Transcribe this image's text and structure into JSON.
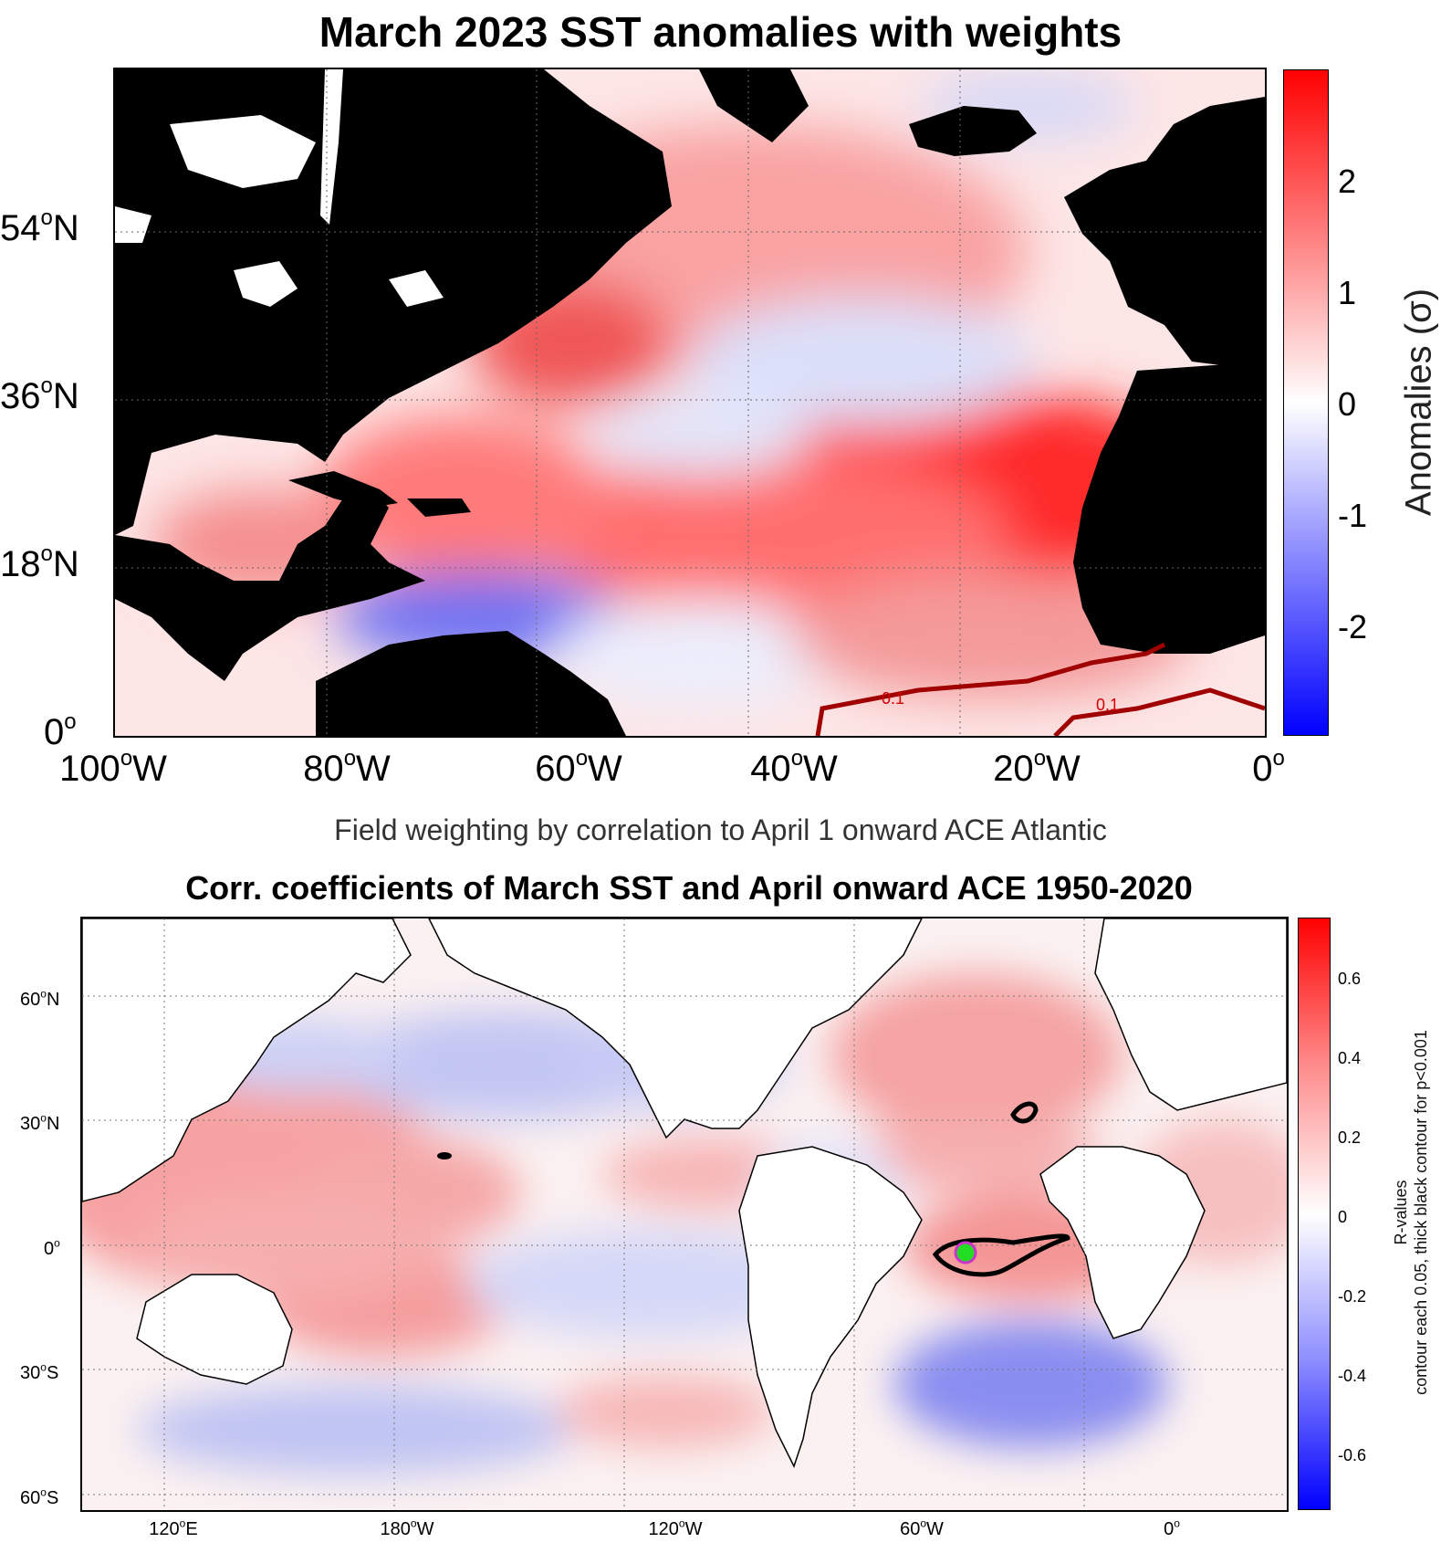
{
  "panel1": {
    "title": "March 2023 SST anomalies with weights",
    "lat_labels": [
      {
        "deg": "54",
        "hemi": "N"
      },
      {
        "deg": "36",
        "hemi": "N"
      },
      {
        "deg": "18",
        "hemi": "N"
      },
      {
        "deg": "0",
        "hemi": ""
      }
    ],
    "lon_labels": [
      {
        "deg": "100",
        "hemi": "W"
      },
      {
        "deg": "80",
        "hemi": "W"
      },
      {
        "deg": "60",
        "hemi": "W"
      },
      {
        "deg": "40",
        "hemi": "W"
      },
      {
        "deg": "20",
        "hemi": "W"
      },
      {
        "deg": "0",
        "hemi": ""
      }
    ],
    "colorbar": {
      "label": "Anomalies (σ)",
      "ticks": [
        "2",
        "1",
        "0",
        "-1",
        "-2"
      ]
    },
    "contour_labels": [
      "0.1",
      "0.1"
    ],
    "subtitle": "Field weighting by correlation to April 1 onward ACE Atlantic"
  },
  "panel2": {
    "title": "Corr. coefficients of March SST and April onward ACE 1950-2020",
    "lat_labels": [
      {
        "deg": "60",
        "hemi": "N"
      },
      {
        "deg": "30",
        "hemi": "N"
      },
      {
        "deg": "0",
        "hemi": ""
      },
      {
        "deg": "30",
        "hemi": "S"
      },
      {
        "deg": "60",
        "hemi": "S"
      }
    ],
    "lon_labels": [
      {
        "deg": "120",
        "hemi": "E"
      },
      {
        "deg": "180",
        "hemi": "W"
      },
      {
        "deg": "120",
        "hemi": "W"
      },
      {
        "deg": "60",
        "hemi": "W"
      },
      {
        "deg": "0",
        "hemi": ""
      }
    ],
    "colorbar": {
      "label_line1": "R-values",
      "label_line2": "contour each 0.05, thick black contour for p<0.001",
      "ticks": [
        "0.6",
        "0.4",
        "0.2",
        "0",
        "-0.2",
        "-0.4",
        "-0.6"
      ]
    }
  },
  "colors": {
    "warm": "#ff0000",
    "cool": "#0000ff",
    "land": "#000000",
    "marker": "#22dd22",
    "marker_ring": "#cc33cc",
    "contour": "#a00000"
  }
}
